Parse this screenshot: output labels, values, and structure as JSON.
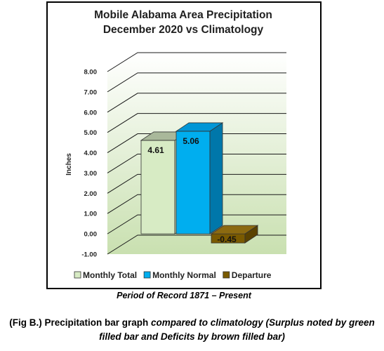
{
  "chart_data": {
    "type": "bar",
    "title": "Mobile Alabama Area Precipitation",
    "subtitle": "December 2020 vs Climatology",
    "ylabel": "Inches",
    "xlabel": "",
    "ylim": [
      -1.0,
      8.0
    ],
    "yticks": [
      "-1.00",
      "0.00",
      "1.00",
      "2.00",
      "3.00",
      "4.00",
      "5.00",
      "6.00",
      "7.00",
      "8.00"
    ],
    "grid": true,
    "legend_position": "bottom",
    "series": [
      {
        "name": "Monthly Total",
        "value": 4.61,
        "label": "4.61",
        "color": "#d7ebc4",
        "side_color": "#b9cfa6",
        "top_color": "#a9b89a"
      },
      {
        "name": "Monthly Normal",
        "value": 5.06,
        "label": "5.06",
        "color": "#00aeef",
        "side_color": "#0077aa",
        "top_color": "#0096d6"
      },
      {
        "name": "Departure",
        "value": -0.45,
        "label": "-0.45",
        "color": "#7a5a00",
        "side_color": "#5a4200",
        "top_color": "#8c6a10"
      }
    ]
  },
  "captions": {
    "period": "Period of Record 1871 – Present",
    "fig_prefix": "(Fig B.) Precipitation bar graph ",
    "fig_italic": "compared to climatology (Surplus noted by green filled bar and Deficits by brown filled bar)"
  }
}
